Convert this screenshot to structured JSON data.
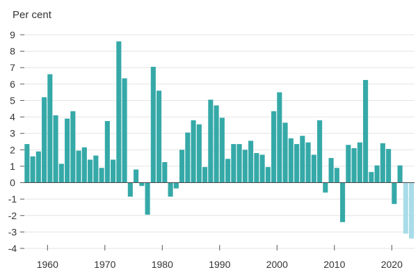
{
  "chart_data": {
    "type": "bar",
    "ylabel": "Per cent",
    "ylim": [
      -4,
      9
    ],
    "yticks": [
      "9",
      "8",
      "7",
      "6",
      "5",
      "4",
      "3",
      "2",
      "1",
      "0",
      "-1",
      "-2",
      "-3",
      "-4"
    ],
    "xticks": [
      "1960",
      "1970",
      "1980",
      "1990",
      "2000",
      "2010",
      "2020"
    ],
    "grid": true,
    "colors": {
      "actual": "#35a9a8",
      "forecast": "#a9dce8"
    },
    "x": [
      1956,
      1957,
      1958,
      1959,
      1960,
      1961,
      1962,
      1963,
      1964,
      1965,
      1966,
      1967,
      1968,
      1969,
      1970,
      1971,
      1972,
      1973,
      1974,
      1975,
      1976,
      1977,
      1978,
      1979,
      1980,
      1981,
      1982,
      1983,
      1984,
      1985,
      1986,
      1987,
      1988,
      1989,
      1990,
      1991,
      1992,
      1993,
      1994,
      1995,
      1996,
      1997,
      1998,
      1999,
      2000,
      2001,
      2002,
      2003,
      2004,
      2005,
      2006,
      2007,
      2008,
      2009,
      2010,
      2011,
      2012,
      2013,
      2014,
      2015,
      2016,
      2017,
      2018,
      2019,
      2020,
      2021,
      2022,
      2023
    ],
    "values": [
      2.35,
      1.6,
      1.9,
      5.2,
      6.6,
      4.1,
      1.15,
      3.9,
      4.35,
      1.95,
      2.15,
      1.4,
      1.65,
      0.9,
      3.75,
      1.4,
      8.6,
      6.35,
      -0.85,
      0.8,
      -0.2,
      -1.95,
      7.05,
      5.6,
      1.25,
      -0.85,
      -0.35,
      2.0,
      3.05,
      3.8,
      3.55,
      0.95,
      5.05,
      4.7,
      3.95,
      1.45,
      2.35,
      2.35,
      2.0,
      2.55,
      1.8,
      1.7,
      0.95,
      4.35,
      5.5,
      3.65,
      2.7,
      2.35,
      2.85,
      2.45,
      1.7,
      3.8,
      -0.6,
      1.5,
      0.9,
      -2.4,
      2.3,
      2.1,
      2.45,
      6.25,
      0.65,
      1.05,
      2.4,
      2.05,
      -1.3,
      1.05,
      -3.1,
      -3.4
    ],
    "forecast_from": 2022
  }
}
